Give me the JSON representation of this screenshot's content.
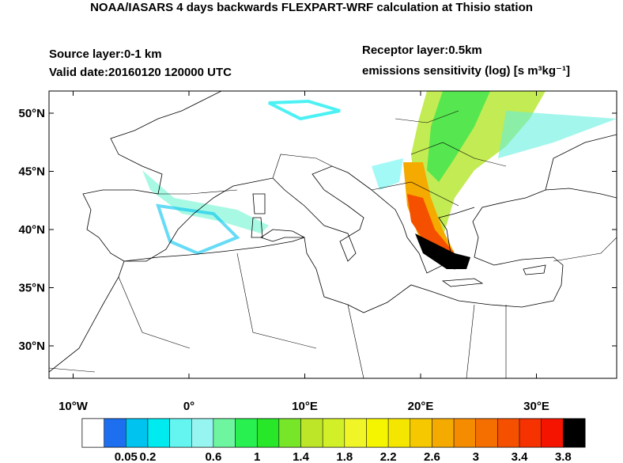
{
  "header": {
    "title": "NOAA/IASARS 4 days backwards FLEXPART-WRF calculation at Thisio station",
    "source_layer": "Source layer:0-1 km",
    "valid_date": "Valid date:20160120 120000 UTC",
    "receptor_layer": "Receptor layer:0.5km",
    "units": "emissions sensitivity (log) [s m³kg⁻¹]"
  },
  "map": {
    "lon_ticks": [
      {
        "value": -10,
        "label": "10°W"
      },
      {
        "value": 0,
        "label": "0°"
      },
      {
        "value": 10,
        "label": "10°E"
      },
      {
        "value": 20,
        "label": "20°E"
      },
      {
        "value": 30,
        "label": "30°E"
      }
    ],
    "lat_ticks": [
      {
        "value": 50,
        "label": "50°N"
      },
      {
        "value": 45,
        "label": "45°N"
      },
      {
        "value": 40,
        "label": "40°N"
      },
      {
        "value": 35,
        "label": "35°N"
      },
      {
        "value": 30,
        "label": "30°N"
      }
    ]
  },
  "colorbar": {
    "colors": [
      "#ffffff",
      "#1e6ef0",
      "#00c3f0",
      "#00ebf0",
      "#64f5f0",
      "#96f5f0",
      "#6ef5a0",
      "#28f050",
      "#28e628",
      "#78e628",
      "#bee628",
      "#d2f028",
      "#f0f528",
      "#f5f500",
      "#f5e600",
      "#f5c800",
      "#f5aa00",
      "#f58c00",
      "#f56e00",
      "#f55000",
      "#f53200",
      "#f51400",
      "#000000"
    ],
    "labels": [
      0.05,
      0.2,
      0.6,
      1,
      1.4,
      1.8,
      2.2,
      2.6,
      3,
      3.4,
      3.8
    ]
  }
}
